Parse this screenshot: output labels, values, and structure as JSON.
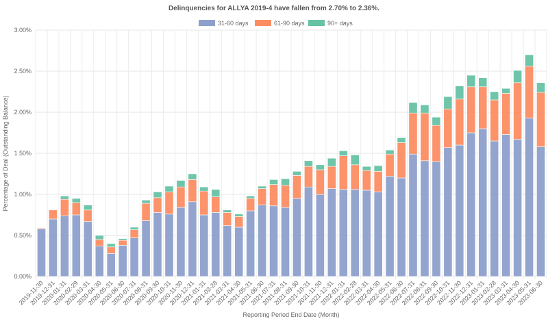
{
  "chart_data": {
    "type": "bar",
    "stacked": true,
    "title": "Delinquencies for ALLYA 2019-4 have fallen from 2.70% to 2.36%.",
    "xlabel": "Reporting Period End Date (Month)",
    "ylabel": "Percentage of Deal (Outstanding Balance)",
    "ylim": [
      0,
      3.0
    ],
    "yticks": [
      "0.00%",
      "0.50%",
      "1.00%",
      "1.50%",
      "2.00%",
      "2.50%",
      "3.00%"
    ],
    "grid": true,
    "legend_position": "top",
    "categories": [
      "2019-11-30",
      "2019-12-31",
      "2020-01-31",
      "2020-02-29",
      "2020-03-31",
      "2020-04-30",
      "2020-05-31",
      "2020-06-30",
      "2020-07-31",
      "2020-08-31",
      "2020-09-30",
      "2020-10-31",
      "2020-11-30",
      "2020-12-31",
      "2021-01-31",
      "2021-02-28",
      "2021-03-31",
      "2021-04-30",
      "2021-05-31",
      "2021-06-30",
      "2021-07-31",
      "2021-08-31",
      "2021-09-30",
      "2021-10-31",
      "2021-11-30",
      "2021-12-31",
      "2022-01-31",
      "2022-02-28",
      "2022-03-31",
      "2022-04-30",
      "2022-05-31",
      "2022-06-30",
      "2022-07-31",
      "2022-08-31",
      "2022-09-30",
      "2022-10-31",
      "2022-11-30",
      "2022-12-31",
      "2023-01-31",
      "2023-02-28",
      "2023-03-31",
      "2023-04-30",
      "2023-05-31",
      "2023-06-30"
    ],
    "series": [
      {
        "name": "31-60 days",
        "color": "#8da0cb",
        "values": [
          0.58,
          0.7,
          0.74,
          0.75,
          0.67,
          0.37,
          0.28,
          0.38,
          0.47,
          0.68,
          0.78,
          0.76,
          0.84,
          0.91,
          0.75,
          0.78,
          0.62,
          0.6,
          0.8,
          0.87,
          0.86,
          0.84,
          0.95,
          1.09,
          1.0,
          1.07,
          1.06,
          1.06,
          1.05,
          1.03,
          1.22,
          1.2,
          1.49,
          1.41,
          1.4,
          1.57,
          1.6,
          1.75,
          1.8,
          1.65,
          1.73,
          1.67,
          1.93,
          1.58
        ]
      },
      {
        "name": "61-90 days",
        "color": "#fc8d62",
        "values": [
          0.01,
          0.11,
          0.2,
          0.15,
          0.14,
          0.08,
          0.08,
          0.06,
          0.1,
          0.21,
          0.18,
          0.27,
          0.25,
          0.27,
          0.29,
          0.19,
          0.16,
          0.13,
          0.15,
          0.2,
          0.26,
          0.27,
          0.28,
          0.25,
          0.3,
          0.27,
          0.41,
          0.3,
          0.24,
          0.25,
          0.27,
          0.43,
          0.5,
          0.58,
          0.44,
          0.47,
          0.56,
          0.56,
          0.51,
          0.5,
          0.5,
          0.69,
          0.63,
          0.66
        ]
      },
      {
        "name": "90+ days",
        "color": "#66c2a5",
        "values": [
          0.0,
          0.0,
          0.04,
          0.05,
          0.06,
          0.05,
          0.04,
          0.02,
          0.03,
          0.04,
          0.07,
          0.07,
          0.08,
          0.07,
          0.05,
          0.09,
          0.03,
          0.03,
          0.03,
          0.03,
          0.06,
          0.08,
          0.05,
          0.07,
          0.06,
          0.1,
          0.06,
          0.12,
          0.05,
          0.07,
          0.05,
          0.06,
          0.13,
          0.1,
          0.1,
          0.15,
          0.16,
          0.14,
          0.11,
          0.1,
          0.06,
          0.15,
          0.14,
          0.12
        ]
      }
    ]
  }
}
